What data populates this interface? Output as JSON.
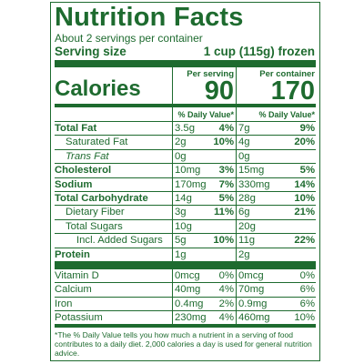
{
  "label": {
    "title": "Nutrition Facts",
    "servings_per_container": "About 2 servings per container",
    "serving_size_label": "Serving size",
    "serving_size_value": "1 cup (115g) frozen",
    "calories_label": "Calories",
    "per_serving_header": "Per serving",
    "per_container_header": "Per container",
    "calories_per_serving": "90",
    "calories_per_container": "170",
    "dv_header": "% Daily Value*",
    "nutrients": [
      {
        "name": "Total Fat",
        "amt1": "3.5g",
        "dv1": "4%",
        "amt2": "7g",
        "dv2": "9%"
      },
      {
        "name": "Saturated Fat",
        "amt1": "2g",
        "dv1": "10%",
        "amt2": "4g",
        "dv2": "20%"
      },
      {
        "name": "Trans Fat",
        "amt1": "0g",
        "dv1": "",
        "amt2": "0g",
        "dv2": ""
      },
      {
        "name": "Cholesterol",
        "amt1": "10mg",
        "dv1": "3%",
        "amt2": "15mg",
        "dv2": "5%"
      },
      {
        "name": "Sodium",
        "amt1": "170mg",
        "dv1": "7%",
        "amt2": "330mg",
        "dv2": "14%"
      },
      {
        "name": "Total Carbohydrate",
        "amt1": "14g",
        "dv1": "5%",
        "amt2": "28g",
        "dv2": "10%"
      },
      {
        "name": "Dietary Fiber",
        "amt1": "3g",
        "dv1": "11%",
        "amt2": "6g",
        "dv2": "21%"
      },
      {
        "name": "Total Sugars",
        "amt1": "10g",
        "dv1": "",
        "amt2": "20g",
        "dv2": ""
      },
      {
        "name": "Incl. Added Sugars",
        "amt1": "5g",
        "dv1": "10%",
        "amt2": "11g",
        "dv2": "22%"
      },
      {
        "name": "Protein",
        "amt1": "1g",
        "dv1": "",
        "amt2": "2g",
        "dv2": ""
      }
    ],
    "vitamins": [
      {
        "name": "Vitamin D",
        "amt1": "0mcg",
        "dv1": "0%",
        "amt2": "0mcg",
        "dv2": "0%"
      },
      {
        "name": "Calcium",
        "amt1": "40mg",
        "dv1": "4%",
        "amt2": "70mg",
        "dv2": "6%"
      },
      {
        "name": "Iron",
        "amt1": "0.4mg",
        "dv1": "2%",
        "amt2": "0.9mg",
        "dv2": "6%"
      },
      {
        "name": "Potassium",
        "amt1": "230mg",
        "dv1": "4%",
        "amt2": "460mg",
        "dv2": "10%"
      }
    ],
    "footnote": "*The % Daily Value tells you how much a nutrient in a serving of food contributes to a daily diet. 2,000 calories a day is used for general nutrition advice."
  },
  "colors": {
    "ink": "#1e6b2f",
    "background": "#ffffff"
  }
}
